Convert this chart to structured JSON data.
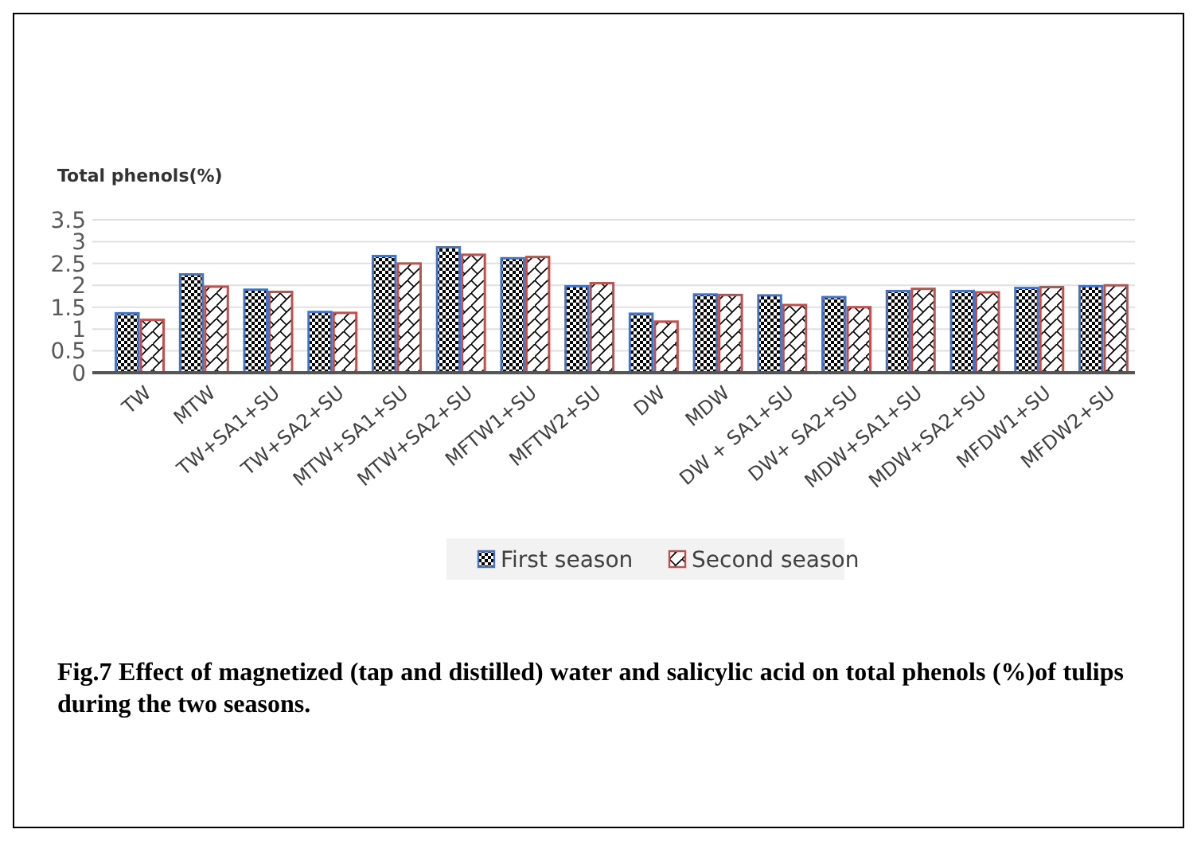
{
  "chart_data": {
    "type": "bar",
    "title": "Total phenols(%)",
    "categories": [
      "TW",
      "MTW",
      "TW+SA1+SU",
      "TW+SA2+SU",
      "MTW+SA1+SU",
      "MTW+SA2+SU",
      "MFTW1+SU",
      "MFTW2+SU",
      "DW",
      "MDW",
      "DW + SA1+SU",
      "DW+ SA2+SU",
      "MDW+SA1+SU",
      "MDW+SA2+SU",
      "MFDW1+SU",
      "MFDW2+SU"
    ],
    "series": [
      {
        "name": "First season",
        "color": "#4472c4",
        "values": [
          1.36,
          2.25,
          1.9,
          1.39,
          2.67,
          2.87,
          2.62,
          1.98,
          1.35,
          1.79,
          1.77,
          1.73,
          1.87,
          1.87,
          1.94,
          1.98
        ]
      },
      {
        "name": "Second season",
        "color": "#c0504d",
        "values": [
          1.21,
          1.97,
          1.85,
          1.37,
          2.5,
          2.7,
          2.65,
          2.05,
          1.17,
          1.78,
          1.55,
          1.5,
          1.92,
          1.84,
          1.96,
          2.0
        ]
      }
    ],
    "ylim": [
      0,
      3.5
    ],
    "yticks": [
      0,
      0.5,
      1,
      1.5,
      2,
      2.5,
      3,
      3.5
    ],
    "grid": "y",
    "legend": "bottom",
    "annotations": [
      "Fig.7 Effect of magnetized (tap and distilled) water and salicylic acid on total phenols (%)of tulips during the two seasons."
    ]
  }
}
